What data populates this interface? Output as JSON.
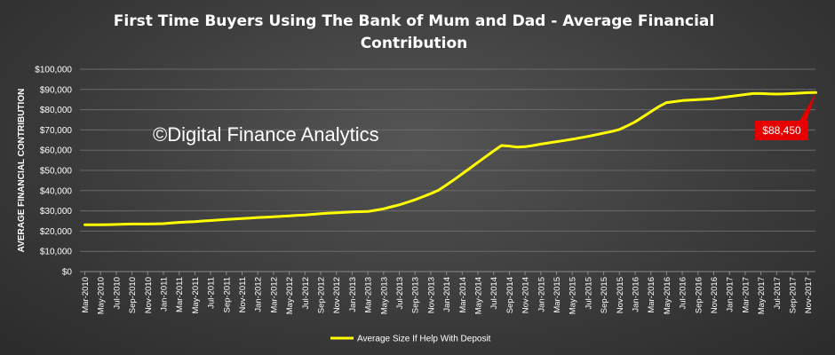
{
  "chart_data": {
    "type": "line",
    "title": "First Time Buyers Using The Bank of Mum and Dad - Average Financial Contribution",
    "title_lines": [
      "First Time Buyers Using The Bank of Mum and Dad - Average Financial",
      "Contribution"
    ],
    "xlabel": "",
    "ylabel": "AVERAGE FINANCIAL CONTRIBUTION",
    "ylim": [
      0,
      100000
    ],
    "y_ticks": [
      "$0",
      "$10,000",
      "$20,000",
      "$30,000",
      "$40,000",
      "$50,000",
      "$60,000",
      "$70,000",
      "$80,000",
      "$90,000",
      "$100,000"
    ],
    "grid": true,
    "legend_position": "bottom",
    "watermark": "©Digital Finance Analytics",
    "callout": "$88,450",
    "colors": {
      "series": "#ffff00",
      "callout": "#e60000",
      "grid": "#6a6a6a"
    },
    "x_ticks": [
      "Mar-2010",
      "May-2010",
      "Jul-2010",
      "Sep-2010",
      "Nov-2010",
      "Jan-2011",
      "Mar-2011",
      "May-2011",
      "Jul-2011",
      "Sep-2011",
      "Nov-2011",
      "Jan-2012",
      "Mar-2012",
      "May-2012",
      "Jul-2012",
      "Sep-2012",
      "Nov-2012",
      "Jan-2013",
      "Mar-2013",
      "May-2013",
      "Jul-2013",
      "Sep-2013",
      "Nov-2013",
      "Jan-2014",
      "Mar-2014",
      "May-2014",
      "Jul-2014",
      "Sep-2014",
      "Nov-2014",
      "Jan-2015",
      "Mar-2015",
      "May-2015",
      "Jul-2015",
      "Sep-2015",
      "Nov-2015",
      "Jan-2016",
      "Mar-2016",
      "May-2016",
      "Jul-2016",
      "Sep-2016",
      "Nov-2016",
      "Jan-2017",
      "Mar-2017",
      "May-2017",
      "Jul-2017",
      "Sep-2017",
      "Nov-2017"
    ],
    "series": [
      {
        "name": "Average Size If Help With Deposit",
        "x": [
          "Mar-2010",
          "Apr-2010",
          "May-2010",
          "Jun-2010",
          "Jul-2010",
          "Aug-2010",
          "Sep-2010",
          "Oct-2010",
          "Nov-2010",
          "Dec-2010",
          "Jan-2011",
          "Feb-2011",
          "Mar-2011",
          "Apr-2011",
          "May-2011",
          "Jun-2011",
          "Jul-2011",
          "Aug-2011",
          "Sep-2011",
          "Oct-2011",
          "Nov-2011",
          "Dec-2011",
          "Jan-2012",
          "Feb-2012",
          "Mar-2012",
          "Apr-2012",
          "May-2012",
          "Jun-2012",
          "Jul-2012",
          "Aug-2012",
          "Sep-2012",
          "Oct-2012",
          "Nov-2012",
          "Dec-2012",
          "Jan-2013",
          "Feb-2013",
          "Mar-2013",
          "Apr-2013",
          "May-2013",
          "Jun-2013",
          "Jul-2013",
          "Aug-2013",
          "Sep-2013",
          "Oct-2013",
          "Nov-2013",
          "Dec-2013",
          "Jan-2014",
          "Feb-2014",
          "Mar-2014",
          "Apr-2014",
          "May-2014",
          "Jun-2014",
          "Jul-2014",
          "Aug-2014",
          "Sep-2014",
          "Oct-2014",
          "Nov-2014",
          "Dec-2014",
          "Jan-2015",
          "Feb-2015",
          "Mar-2015",
          "Apr-2015",
          "May-2015",
          "Jun-2015",
          "Jul-2015",
          "Aug-2015",
          "Sep-2015",
          "Oct-2015",
          "Nov-2015",
          "Dec-2015",
          "Jan-2016",
          "Feb-2016",
          "Mar-2016",
          "Apr-2016",
          "May-2016",
          "Jun-2016",
          "Jul-2016",
          "Aug-2016",
          "Sep-2016",
          "Oct-2016",
          "Nov-2016",
          "Dec-2016",
          "Jan-2017",
          "Feb-2017",
          "Mar-2017",
          "Apr-2017",
          "May-2017",
          "Jun-2017",
          "Jul-2017",
          "Aug-2017",
          "Sep-2017",
          "Oct-2017",
          "Nov-2017",
          "Dec-2017"
        ],
        "values": [
          23100,
          23100,
          23100,
          23200,
          23300,
          23400,
          23500,
          23500,
          23500,
          23600,
          23700,
          24000,
          24300,
          24500,
          24700,
          25000,
          25200,
          25500,
          25800,
          26000,
          26200,
          26400,
          26700,
          26900,
          27100,
          27300,
          27500,
          27800,
          28000,
          28300,
          28600,
          28900,
          29100,
          29300,
          29500,
          29600,
          29700,
          30300,
          31000,
          32000,
          33000,
          34200,
          35500,
          37000,
          38500,
          40200,
          42800,
          45500,
          48300,
          51100,
          54000,
          56800,
          59600,
          62300,
          62000,
          61500,
          61700,
          62300,
          63000,
          63600,
          64200,
          64800,
          65400,
          66100,
          66800,
          67600,
          68400,
          69200,
          70200,
          72000,
          74000,
          76500,
          79000,
          81500,
          83500,
          84000,
          84500,
          84800,
          85000,
          85200,
          85500,
          86000,
          86500,
          87000,
          87500,
          88000,
          88000,
          87800,
          87700,
          87800,
          88000,
          88200,
          88400,
          88450
        ]
      }
    ]
  }
}
